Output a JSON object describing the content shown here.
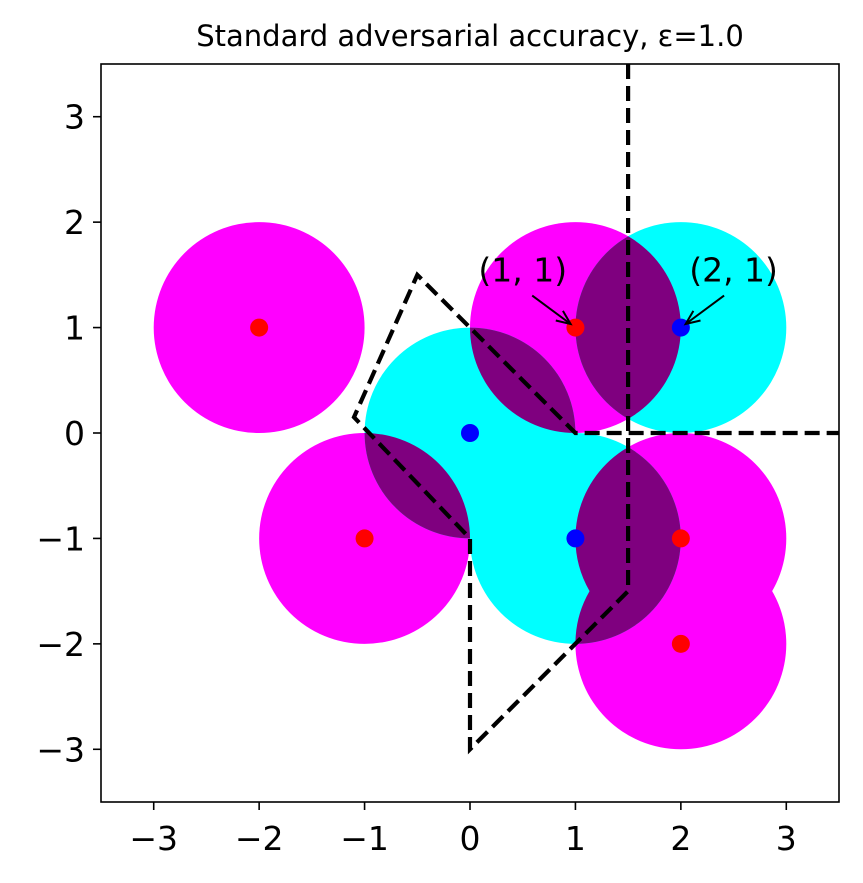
{
  "chart_data": {
    "type": "scatter",
    "title": "Standard adversarial accuracy, ε=1.0",
    "xlabel": "",
    "ylabel": "",
    "xlim": [
      -3.5,
      3.5
    ],
    "ylim": [
      -3.5,
      3.5
    ],
    "xticks": [
      -3,
      -2,
      -1,
      0,
      1,
      2,
      3
    ],
    "yticks": [
      -3,
      -2,
      -1,
      0,
      1,
      2,
      3
    ],
    "xtick_labels": [
      "−3",
      "−2",
      "−1",
      "0",
      "1",
      "2",
      "3"
    ],
    "ytick_labels": [
      "−3",
      "−2",
      "−1",
      "0",
      "1",
      "2",
      "3"
    ],
    "grid": false,
    "epsilon": 1.0,
    "series": [
      {
        "color": "#ff0000",
        "ball_color": "#ff00ff",
        "points": [
          [
            -2,
            1
          ],
          [
            1,
            1
          ],
          [
            -1,
            -1
          ],
          [
            2,
            -1
          ],
          [
            2,
            -2
          ]
        ]
      },
      {
        "color": "#0000ff",
        "ball_color": "#00ffff",
        "points": [
          [
            0,
            0
          ],
          [
            2,
            1
          ],
          [
            1,
            -1
          ]
        ]
      }
    ],
    "overlap_color": "#7f007f",
    "boundary": {
      "style": "dashed",
      "color": "#000000",
      "segments": [
        [
          [
            1.5,
            3.5
          ],
          [
            1.5,
            -1.5
          ],
          [
            0,
            -3
          ],
          [
            0,
            -1
          ],
          [
            -1.1,
            0.15
          ],
          [
            -0.5,
            1.5
          ],
          [
            0,
            1
          ],
          [
            1,
            0
          ],
          [
            3.5,
            0
          ]
        ]
      ]
    },
    "annotations": [
      {
        "text": "(1, 1)",
        "target": [
          1,
          1
        ],
        "text_at": [
          0.5,
          1.55
        ]
      },
      {
        "text": "(2, 1)",
        "target": [
          2,
          1
        ],
        "text_at": [
          2.5,
          1.55
        ]
      }
    ]
  }
}
